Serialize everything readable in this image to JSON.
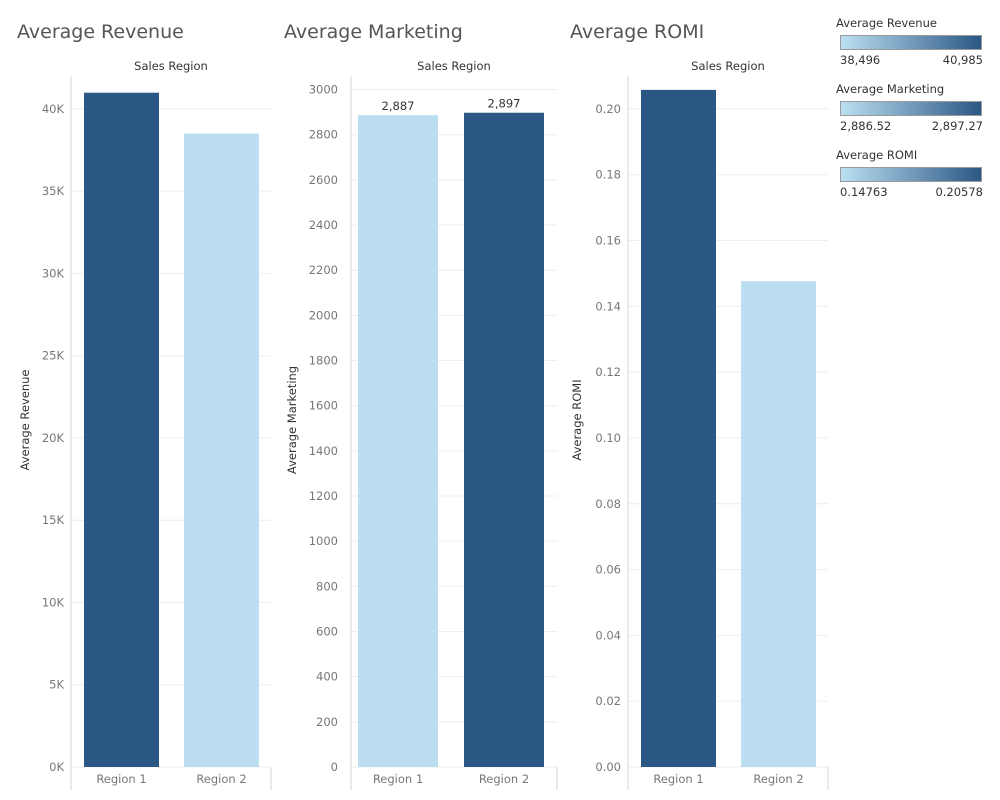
{
  "colors": {
    "dark": "#2b5785",
    "light": "#bbdff1",
    "grid": "#eeeeee",
    "axis": "#d4d4d4",
    "tick_text": "#777777"
  },
  "chart_data": [
    {
      "type": "bar",
      "title": "Average Revenue",
      "column_header": "Sales Region",
      "ylabel": "Average Revenue",
      "categories": [
        "Region 1",
        "Region 2"
      ],
      "values": [
        40985,
        38496
      ],
      "bar_colors": [
        "#2b5785",
        "#bbdff1"
      ],
      "ylim": [
        0,
        42000
      ],
      "yticks": [
        0,
        5000,
        10000,
        15000,
        20000,
        25000,
        30000,
        35000,
        40000
      ],
      "ytick_labels": [
        "0K",
        "5K",
        "10K",
        "15K",
        "20K",
        "25K",
        "30K",
        "35K",
        "40K"
      ],
      "data_labels": [
        "",
        ""
      ],
      "grid": true
    },
    {
      "type": "bar",
      "title": "Average Marketing",
      "column_header": "Sales Region",
      "ylabel": "Average Marketing",
      "categories": [
        "Region 1",
        "Region 2"
      ],
      "values": [
        2886.52,
        2897.27
      ],
      "bar_colors": [
        "#bbdff1",
        "#2b5785"
      ],
      "ylim": [
        0,
        3060
      ],
      "yticks": [
        0,
        200,
        400,
        600,
        800,
        1000,
        1200,
        1400,
        1600,
        1800,
        2000,
        2200,
        2400,
        2600,
        2800,
        3000
      ],
      "ytick_labels": [
        "0",
        "200",
        "400",
        "600",
        "800",
        "1000",
        "1200",
        "1400",
        "1600",
        "1800",
        "2000",
        "2200",
        "2400",
        "2600",
        "2800",
        "3000"
      ],
      "data_labels": [
        "2,887",
        "2,897"
      ],
      "grid": true
    },
    {
      "type": "bar",
      "title": "Average ROMI",
      "column_header": "Sales Region",
      "ylabel": "Average ROMI",
      "categories": [
        "Region 1",
        "Region 2"
      ],
      "values": [
        0.20578,
        0.14763
      ],
      "bar_colors": [
        "#2b5785",
        "#bbdff1"
      ],
      "ylim": [
        0,
        0.21
      ],
      "yticks": [
        0,
        0.02,
        0.04,
        0.06,
        0.08,
        0.1,
        0.12,
        0.14,
        0.16,
        0.18,
        0.2
      ],
      "ytick_labels": [
        "0.00",
        "0.02",
        "0.04",
        "0.06",
        "0.08",
        "0.10",
        "0.12",
        "0.14",
        "0.16",
        "0.18",
        "0.20"
      ],
      "data_labels": [
        "",
        ""
      ],
      "grid": true
    }
  ],
  "legends": [
    {
      "title": "Average Revenue",
      "min": "38,496",
      "max": "40,985"
    },
    {
      "title": "Average Marketing",
      "min": "2,886.52",
      "max": "2,897.27"
    },
    {
      "title": "Average ROMI",
      "min": "0.14763",
      "max": "0.20578"
    }
  ]
}
